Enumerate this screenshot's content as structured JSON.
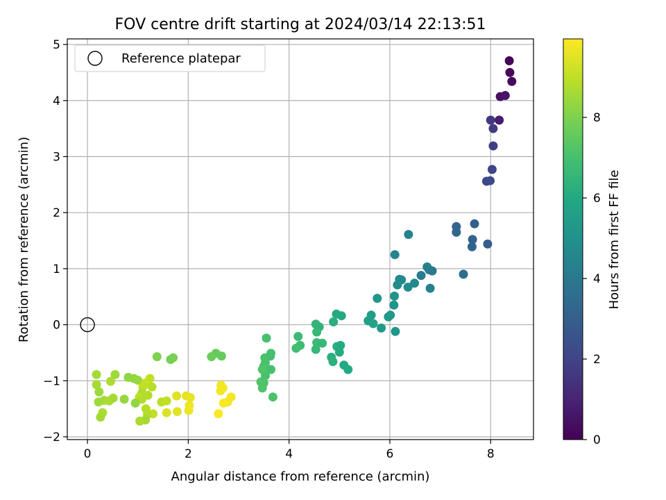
{
  "chart_data": {
    "type": "scatter",
    "title": "FOV centre drift starting at 2024/03/14 22:13:51",
    "xlabel": "Angular distance from reference (arcmin)",
    "ylabel": "Rotation from reference (arcmin)",
    "xlim": [
      -0.4,
      8.85
    ],
    "ylim": [
      -2.05,
      5.1
    ],
    "xticks": [
      0,
      2,
      4,
      6,
      8
    ],
    "yticks": [
      -2,
      -1,
      0,
      1,
      2,
      3,
      4,
      5
    ],
    "grid": true,
    "legend": {
      "location": "upper left",
      "entries": [
        "Reference platepar"
      ]
    },
    "reference_point": {
      "x": 0,
      "y": 0
    },
    "colorbar": {
      "label": "Hours from first FF file",
      "range": [
        0,
        9.95
      ],
      "ticks": [
        0,
        2,
        4,
        6,
        8
      ],
      "colormap": "viridis"
    },
    "points": [
      {
        "x": 8.37,
        "y": 4.71,
        "c": 0.1
      },
      {
        "x": 8.38,
        "y": 4.5,
        "c": 0.2
      },
      {
        "x": 8.42,
        "y": 4.34,
        "c": 0.3
      },
      {
        "x": 8.19,
        "y": 4.07,
        "c": 0.4
      },
      {
        "x": 8.29,
        "y": 4.09,
        "c": 0.5
      },
      {
        "x": 8.17,
        "y": 3.65,
        "c": 0.8
      },
      {
        "x": 8.0,
        "y": 3.65,
        "c": 1.6
      },
      {
        "x": 8.05,
        "y": 3.5,
        "c": 1.7
      },
      {
        "x": 8.05,
        "y": 3.19,
        "c": 1.8
      },
      {
        "x": 8.03,
        "y": 2.77,
        "c": 2.0
      },
      {
        "x": 7.92,
        "y": 2.56,
        "c": 2.1
      },
      {
        "x": 7.99,
        "y": 2.57,
        "c": 2.2
      },
      {
        "x": 7.32,
        "y": 1.75,
        "c": 3.2
      },
      {
        "x": 7.32,
        "y": 1.65,
        "c": 3.3
      },
      {
        "x": 7.68,
        "y": 1.8,
        "c": 3.0
      },
      {
        "x": 7.64,
        "y": 1.52,
        "c": 3.1
      },
      {
        "x": 7.63,
        "y": 1.39,
        "c": 3.2
      },
      {
        "x": 7.94,
        "y": 1.44,
        "c": 2.9
      },
      {
        "x": 7.46,
        "y": 0.9,
        "c": 3.6
      },
      {
        "x": 6.37,
        "y": 1.61,
        "c": 4.4
      },
      {
        "x": 6.1,
        "y": 1.25,
        "c": 4.5
      },
      {
        "x": 6.74,
        "y": 1.03,
        "c": 4.3
      },
      {
        "x": 6.78,
        "y": 0.98,
        "c": 4.2
      },
      {
        "x": 6.84,
        "y": 0.96,
        "c": 4.0
      },
      {
        "x": 6.62,
        "y": 0.88,
        "c": 4.1
      },
      {
        "x": 6.19,
        "y": 0.81,
        "c": 4.6
      },
      {
        "x": 6.23,
        "y": 0.8,
        "c": 4.7
      },
      {
        "x": 6.15,
        "y": 0.71,
        "c": 4.8
      },
      {
        "x": 6.36,
        "y": 0.67,
        "c": 4.8
      },
      {
        "x": 6.49,
        "y": 0.74,
        "c": 4.7
      },
      {
        "x": 6.8,
        "y": 0.65,
        "c": 4.3
      },
      {
        "x": 6.09,
        "y": 0.51,
        "c": 5.0
      },
      {
        "x": 5.75,
        "y": 0.47,
        "c": 5.2
      },
      {
        "x": 6.08,
        "y": 0.35,
        "c": 5.1
      },
      {
        "x": 5.97,
        "y": 0.14,
        "c": 5.3
      },
      {
        "x": 6.01,
        "y": 0.17,
        "c": 5.3
      },
      {
        "x": 5.63,
        "y": 0.17,
        "c": 5.5
      },
      {
        "x": 5.57,
        "y": 0.07,
        "c": 5.6
      },
      {
        "x": 5.67,
        "y": 0.02,
        "c": 5.7
      },
      {
        "x": 5.83,
        "y": -0.06,
        "c": 5.4
      },
      {
        "x": 6.11,
        "y": -0.12,
        "c": 5.2
      },
      {
        "x": 4.94,
        "y": 0.19,
        "c": 6.1
      },
      {
        "x": 5.04,
        "y": 0.16,
        "c": 6.0
      },
      {
        "x": 4.88,
        "y": 0.05,
        "c": 6.2
      },
      {
        "x": 4.53,
        "y": 0.01,
        "c": 6.5
      },
      {
        "x": 4.6,
        "y": -0.04,
        "c": 6.4
      },
      {
        "x": 4.55,
        "y": -0.13,
        "c": 6.6
      },
      {
        "x": 4.18,
        "y": -0.21,
        "c": 6.7
      },
      {
        "x": 4.22,
        "y": -0.37,
        "c": 6.8
      },
      {
        "x": 4.14,
        "y": -0.42,
        "c": 6.9
      },
      {
        "x": 4.55,
        "y": -0.32,
        "c": 6.7
      },
      {
        "x": 4.66,
        "y": -0.33,
        "c": 6.6
      },
      {
        "x": 4.53,
        "y": -0.44,
        "c": 6.6
      },
      {
        "x": 4.95,
        "y": -0.39,
        "c": 6.2
      },
      {
        "x": 5.02,
        "y": -0.37,
        "c": 6.1
      },
      {
        "x": 5.0,
        "y": -0.49,
        "c": 6.1
      },
      {
        "x": 4.84,
        "y": -0.58,
        "c": 6.3
      },
      {
        "x": 4.87,
        "y": -0.66,
        "c": 6.3
      },
      {
        "x": 5.09,
        "y": -0.72,
        "c": 6.0
      },
      {
        "x": 5.17,
        "y": -0.8,
        "c": 6.0
      },
      {
        "x": 3.55,
        "y": -0.24,
        "c": 7.0
      },
      {
        "x": 3.64,
        "y": -0.51,
        "c": 7.0
      },
      {
        "x": 3.63,
        "y": -0.56,
        "c": 7.0
      },
      {
        "x": 3.52,
        "y": -0.59,
        "c": 7.1
      },
      {
        "x": 3.53,
        "y": -0.68,
        "c": 7.1
      },
      {
        "x": 3.5,
        "y": -0.74,
        "c": 7.1
      },
      {
        "x": 3.47,
        "y": -0.8,
        "c": 7.2
      },
      {
        "x": 3.64,
        "y": -0.8,
        "c": 7.0
      },
      {
        "x": 3.53,
        "y": -0.91,
        "c": 7.1
      },
      {
        "x": 3.44,
        "y": -1.02,
        "c": 7.2
      },
      {
        "x": 3.5,
        "y": -1.04,
        "c": 7.2
      },
      {
        "x": 3.47,
        "y": -1.13,
        "c": 7.2
      },
      {
        "x": 3.68,
        "y": -1.29,
        "c": 7.1
      },
      {
        "x": 2.55,
        "y": -0.51,
        "c": 7.6
      },
      {
        "x": 2.46,
        "y": -0.57,
        "c": 7.7
      },
      {
        "x": 2.66,
        "y": -0.56,
        "c": 7.6
      },
      {
        "x": 1.38,
        "y": -0.57,
        "c": 8.0
      },
      {
        "x": 1.65,
        "y": -0.62,
        "c": 7.9
      },
      {
        "x": 1.7,
        "y": -0.59,
        "c": 7.9
      },
      {
        "x": 0.18,
        "y": -0.89,
        "c": 8.6
      },
      {
        "x": 0.55,
        "y": -0.89,
        "c": 8.5
      },
      {
        "x": 0.81,
        "y": -0.94,
        "c": 8.3
      },
      {
        "x": 0.92,
        "y": -0.96,
        "c": 8.3
      },
      {
        "x": 1.0,
        "y": -0.99,
        "c": 8.4
      },
      {
        "x": 0.46,
        "y": -1.01,
        "c": 8.7
      },
      {
        "x": 1.24,
        "y": -0.96,
        "c": 9.0
      },
      {
        "x": 1.15,
        "y": -1.04,
        "c": 9.1
      },
      {
        "x": 0.18,
        "y": -1.07,
        "c": 8.6
      },
      {
        "x": 1.28,
        "y": -1.11,
        "c": 8.9
      },
      {
        "x": 1.1,
        "y": -1.11,
        "c": 9.0
      },
      {
        "x": 0.23,
        "y": -1.2,
        "c": 8.5
      },
      {
        "x": 1.08,
        "y": -1.22,
        "c": 8.7
      },
      {
        "x": 1.2,
        "y": -1.26,
        "c": 8.8
      },
      {
        "x": 0.33,
        "y": -1.35,
        "c": 8.6
      },
      {
        "x": 0.43,
        "y": -1.36,
        "c": 8.7
      },
      {
        "x": 0.51,
        "y": -1.31,
        "c": 8.6
      },
      {
        "x": 0.73,
        "y": -1.33,
        "c": 8.4
      },
      {
        "x": 1.03,
        "y": -1.29,
        "c": 9.0
      },
      {
        "x": 1.08,
        "y": -1.33,
        "c": 8.8
      },
      {
        "x": 0.22,
        "y": -1.38,
        "c": 8.5
      },
      {
        "x": 0.95,
        "y": -1.4,
        "c": 8.3
      },
      {
        "x": 1.47,
        "y": -1.38,
        "c": 8.9
      },
      {
        "x": 1.57,
        "y": -1.36,
        "c": 9.0
      },
      {
        "x": 1.77,
        "y": -1.27,
        "c": 9.5
      },
      {
        "x": 1.96,
        "y": -1.27,
        "c": 9.6
      },
      {
        "x": 2.04,
        "y": -1.3,
        "c": 9.6
      },
      {
        "x": 2.02,
        "y": -1.44,
        "c": 9.7
      },
      {
        "x": 2.01,
        "y": -1.53,
        "c": 9.7
      },
      {
        "x": 1.78,
        "y": -1.55,
        "c": 9.5
      },
      {
        "x": 1.57,
        "y": -1.57,
        "c": 9.4
      },
      {
        "x": 1.3,
        "y": -1.59,
        "c": 9.0
      },
      {
        "x": 1.16,
        "y": -1.5,
        "c": 8.9
      },
      {
        "x": 1.19,
        "y": -1.6,
        "c": 8.8
      },
      {
        "x": 1.15,
        "y": -1.7,
        "c": 8.6
      },
      {
        "x": 1.04,
        "y": -1.72,
        "c": 8.7
      },
      {
        "x": 0.3,
        "y": -1.57,
        "c": 8.7
      },
      {
        "x": 0.26,
        "y": -1.65,
        "c": 8.6
      },
      {
        "x": 2.65,
        "y": -1.08,
        "c": 9.8
      },
      {
        "x": 2.69,
        "y": -1.13,
        "c": 9.8
      },
      {
        "x": 2.64,
        "y": -1.18,
        "c": 9.8
      },
      {
        "x": 2.85,
        "y": -1.29,
        "c": 9.8
      },
      {
        "x": 2.78,
        "y": -1.38,
        "c": 9.8
      },
      {
        "x": 2.7,
        "y": -1.4,
        "c": 9.9
      },
      {
        "x": 2.6,
        "y": -1.59,
        "c": 9.9
      }
    ]
  }
}
